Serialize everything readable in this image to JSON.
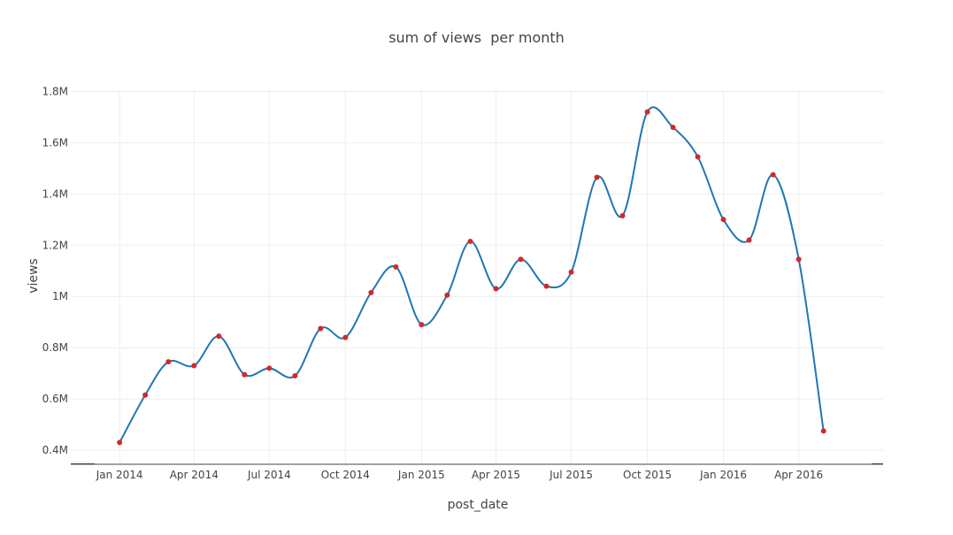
{
  "chart_data": {
    "type": "line",
    "title": "sum of views  per month",
    "xlabel": "post_date",
    "ylabel": "views",
    "x_ticks": [
      "Jan 2014",
      "Apr 2014",
      "Jul 2014",
      "Oct 2014",
      "Jan 2015",
      "Apr 2015",
      "Jul 2015",
      "Oct 2015",
      "Jan 2016",
      "Apr 2016"
    ],
    "y_ticks": [
      "0.4M",
      "0.6M",
      "0.8M",
      "1M",
      "1.2M",
      "1.4M",
      "1.6M",
      "1.8M"
    ],
    "y_tick_values": [
      400000,
      600000,
      800000,
      1000000,
      1200000,
      1400000,
      1600000,
      1800000
    ],
    "ylim": [
      345000,
      1805000
    ],
    "xlim": [
      "2013-11-03",
      "2016-07-12"
    ],
    "grid": true,
    "line_shape": "spline",
    "colors": {
      "line": "#1f77b4",
      "marker": "#d62728",
      "grid": "#eeeeee"
    },
    "series": [
      {
        "x": [
          "2014-01",
          "2014-02",
          "2014-03",
          "2014-04",
          "2014-05",
          "2014-06",
          "2014-07",
          "2014-08",
          "2014-09",
          "2014-10",
          "2014-11",
          "2014-12",
          "2015-01",
          "2015-02",
          "2015-03",
          "2015-04",
          "2015-05",
          "2015-06",
          "2015-07",
          "2015-08",
          "2015-09",
          "2015-10",
          "2015-11",
          "2015-12",
          "2016-01",
          "2016-02",
          "2016-03",
          "2016-04",
          "2016-05"
        ],
        "values": [
          430000,
          615000,
          745000,
          730000,
          845000,
          695000,
          720000,
          690000,
          875000,
          840000,
          1015000,
          1115000,
          890000,
          1005000,
          1215000,
          1030000,
          1145000,
          1040000,
          1095000,
          1465000,
          1315000,
          1720000,
          1660000,
          1545000,
          1300000,
          1220000,
          1475000,
          1145000,
          475000
        ]
      }
    ]
  }
}
